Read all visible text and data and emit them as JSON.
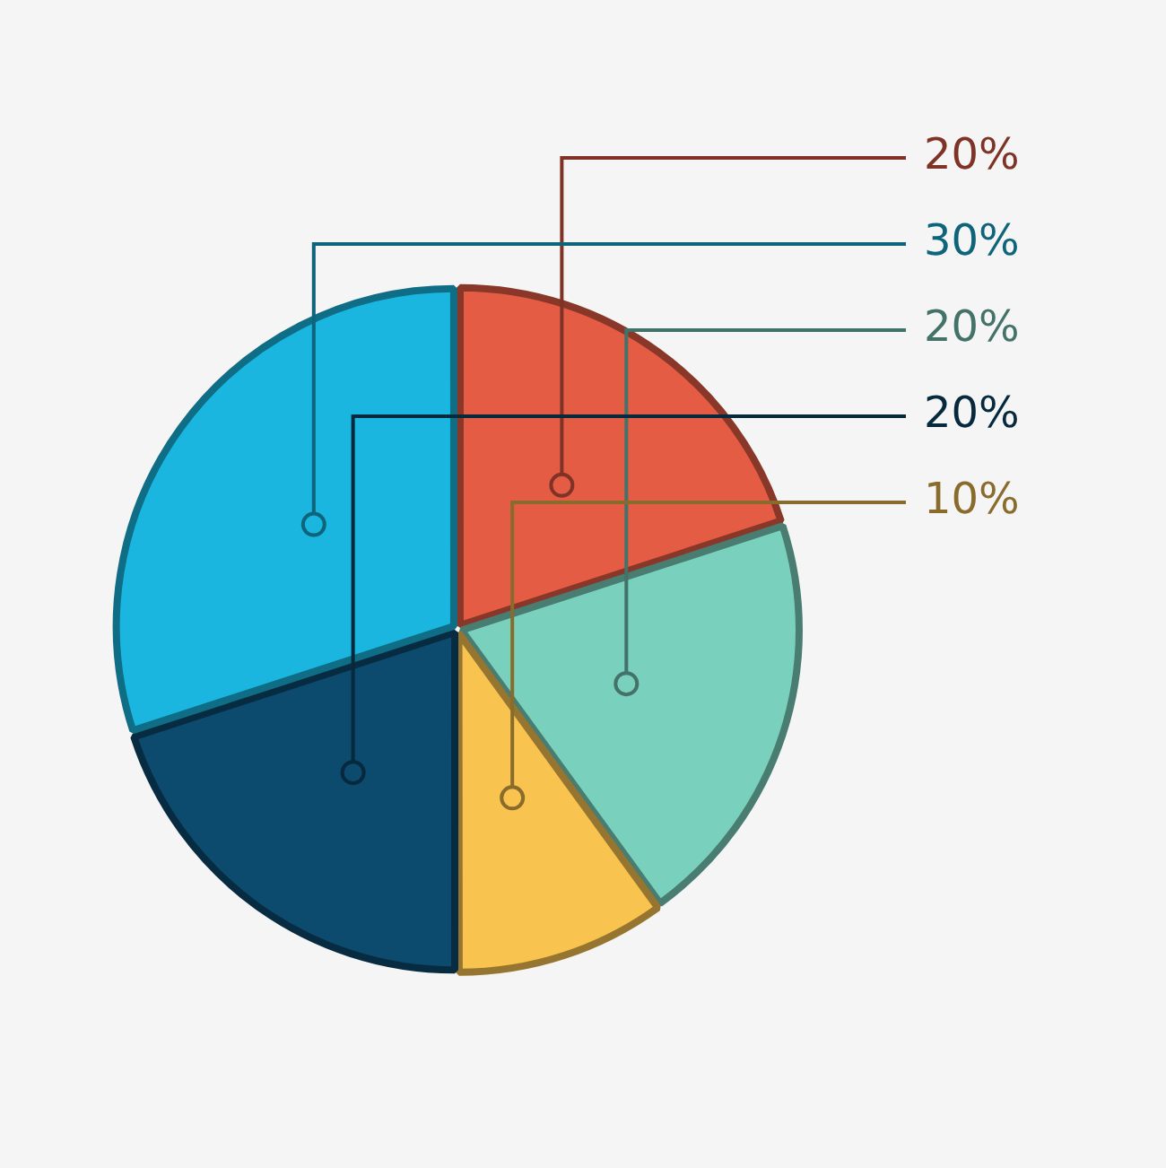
{
  "chart_data": {
    "type": "pie",
    "categories": [
      null,
      null,
      null,
      null,
      null
    ],
    "values": [
      20,
      20,
      10,
      20,
      30
    ],
    "colors": [
      "#e55c45",
      "#79d1bd",
      "#f9c34f",
      "#0c4a6e",
      "#1ab6e0"
    ],
    "value_labels": [
      "20%",
      "20%",
      "10%",
      "20%",
      "30%"
    ],
    "legend": false
  }
}
